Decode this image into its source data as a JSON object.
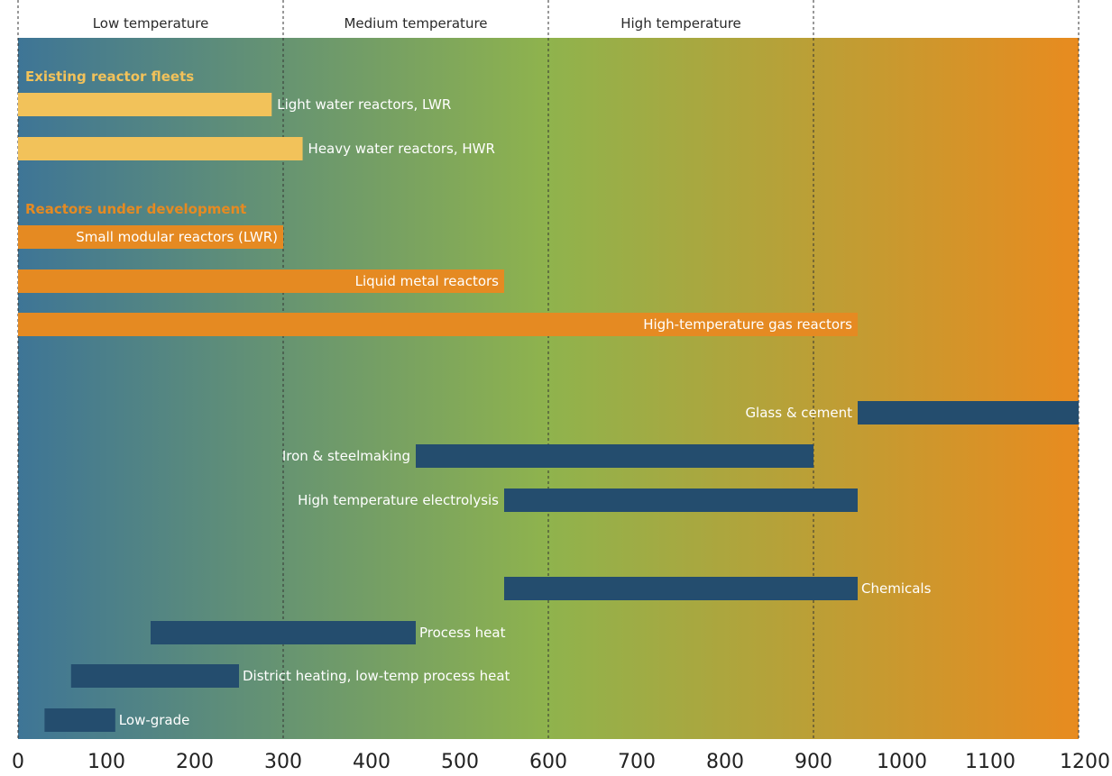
{
  "chart_data": {
    "type": "bar",
    "orientation": "horizontal-range",
    "x_unit": "°C",
    "xlim": [
      0,
      1200
    ],
    "x_ticks": [
      "0",
      "100",
      "200",
      "300",
      "400",
      "500",
      "600",
      "700",
      "800",
      "900",
      "1000",
      "1100",
      "1200"
    ],
    "temperature_bands": [
      {
        "label": "Low temperature",
        "from": 0,
        "to": 300
      },
      {
        "label": "Medium temperature",
        "from": 300,
        "to": 600
      },
      {
        "label": "High temperature",
        "from": 600,
        "to": 900
      }
    ],
    "band_dividers": [
      0,
      300,
      600,
      900,
      1200
    ],
    "groups": [
      {
        "heading": "Existing reactor fleets",
        "color": "#f2c25a"
      },
      {
        "heading": "Reactors under development",
        "color": "#e58a22"
      }
    ],
    "reactors": [
      {
        "label": "Light water reactors, LWR",
        "start": 0,
        "end": 287,
        "group": 0,
        "label_pos": "outside"
      },
      {
        "label": "Heavy water reactors, HWR",
        "start": 0,
        "end": 322,
        "group": 0,
        "label_pos": "outside"
      },
      {
        "label": "Small modular reactors (LWR)",
        "start": 0,
        "end": 300,
        "group": 1,
        "label_pos": "inside"
      },
      {
        "label": "Liquid metal reactors",
        "start": 0,
        "end": 550,
        "group": 1,
        "label_pos": "inside"
      },
      {
        "label": "High-temperature gas reactors",
        "start": 0,
        "end": 950,
        "group": 1,
        "label_pos": "inside"
      }
    ],
    "applications": [
      {
        "label": "Glass & cement",
        "start": 950,
        "end": 1200,
        "label_pos": "left"
      },
      {
        "label": "Iron & steelmaking",
        "start": 450,
        "end": 900,
        "label_pos": "left"
      },
      {
        "label": "High temperature electrolysis",
        "start": 550,
        "end": 950,
        "label_pos": "left"
      },
      {
        "label": "Chemicals",
        "start": 550,
        "end": 950,
        "label_pos": "right"
      },
      {
        "label": "Process heat",
        "start": 150,
        "end": 450,
        "label_pos": "right"
      },
      {
        "label": "District heating, low-temp process heat",
        "start": 60,
        "end": 250,
        "label_pos": "right"
      },
      {
        "label": "Low-grade",
        "start": 30,
        "end": 110,
        "label_pos": "right"
      }
    ],
    "colors": {
      "application_bar": "#244d6e",
      "gradient_start": "#3e7596",
      "gradient_mid": "#8fb34d",
      "gradient_end": "#e88b1f",
      "divider": "#333333"
    }
  }
}
